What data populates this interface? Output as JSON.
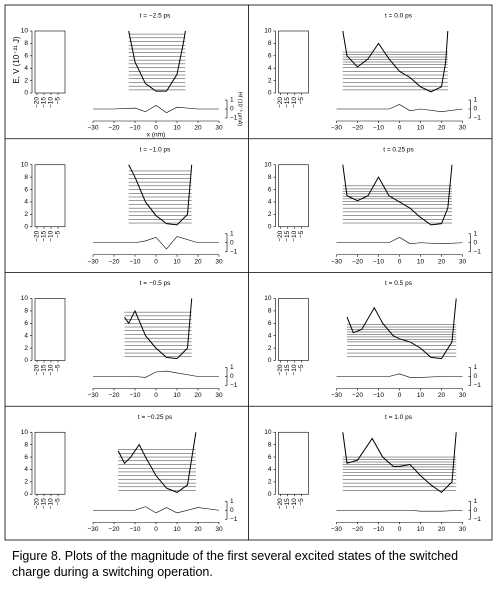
{
  "chart_data": [
    {
      "type": "line",
      "title": "t = −2.5 ps",
      "ylabel": "E, V (10⁻²¹ J)",
      "xlabel": "x (nm)",
      "y2label": "Hf (10⁻³ μmA)",
      "x": [
        -13,
        -10,
        -5,
        0,
        5,
        10,
        13,
        14
      ],
      "values": [
        10,
        5,
        1.5,
        0.3,
        0.3,
        3,
        8,
        10
      ],
      "levels": [
        0.5,
        1.1,
        1.7,
        2.3,
        2.9,
        3.5,
        4.1,
        4.7,
        5.3,
        5.9,
        6.5,
        7.1,
        7.7,
        8.3,
        8.9,
        9.5
      ],
      "current": {
        "x": [
          -30,
          -20,
          -10,
          -5,
          0,
          5,
          10,
          20,
          30
        ],
        "values": [
          0,
          0,
          0.1,
          -0.3,
          0.4,
          -0.4,
          0.2,
          0,
          0
        ]
      },
      "xlim": [
        -30,
        30
      ],
      "xticks": [
        {
          "value": -30,
          "label": "−30"
        },
        {
          "value": -20,
          "label": "−20"
        },
        {
          "value": -10,
          "label": "−10"
        },
        0,
        10,
        20,
        30
      ],
      "ylim": [
        0,
        10
      ],
      "yticks": [
        0,
        2,
        4,
        6,
        8,
        10
      ],
      "y2lim": [
        -1,
        1
      ],
      "y2ticks": [
        1,
        0,
        {
          "value": -1,
          "label": "−1"
        }
      ],
      "inset_ticks": [
        {
          "value": -5,
          "label": "−5"
        },
        {
          "value": -10,
          "label": "−10"
        },
        {
          "value": -15,
          "label": "−15"
        },
        {
          "value": -20,
          "label": "−20"
        }
      ]
    },
    {
      "type": "line",
      "title": "t = 0.0 ps",
      "x": [
        -27,
        -25,
        -20,
        -15,
        -10,
        -5,
        0,
        5,
        10,
        15,
        20,
        22,
        23
      ],
      "values": [
        10,
        6,
        4.2,
        5.5,
        8,
        5.5,
        3.5,
        2.5,
        1,
        0.2,
        1,
        5,
        10
      ],
      "levels": [
        0.5,
        1.1,
        1.7,
        2.3,
        2.9,
        3.5,
        4.1,
        4.6,
        5,
        5.4,
        5.8,
        6.2,
        6.6
      ],
      "current": {
        "x": [
          -30,
          -20,
          -10,
          -5,
          0,
          5,
          10,
          20,
          30
        ],
        "values": [
          0,
          0,
          0,
          0,
          0.5,
          -0.2,
          0,
          -0.3,
          0
        ]
      },
      "xlim": [
        -30,
        30
      ],
      "xticks": [
        {
          "value": -30,
          "label": "−30"
        },
        {
          "value": -20,
          "label": "−20"
        },
        {
          "value": -10,
          "label": "−10"
        },
        0,
        10,
        20,
        30
      ],
      "ylim": [
        0,
        10
      ],
      "yticks": [
        0,
        2,
        4,
        6,
        8,
        10
      ],
      "y2lim": [
        -1,
        1
      ],
      "y2ticks": [
        1,
        0,
        {
          "value": -1,
          "label": "−1"
        }
      ],
      "inset_ticks": [
        {
          "value": -5,
          "label": "−5"
        },
        {
          "value": -10,
          "label": "−10"
        },
        {
          "value": -15,
          "label": "−15"
        },
        {
          "value": -20,
          "label": "−20"
        }
      ]
    },
    {
      "type": "line",
      "title": "t = −1.0 ps",
      "x": [
        -13,
        -10,
        -5,
        0,
        5,
        10,
        15,
        17
      ],
      "values": [
        10,
        8,
        4,
        1.8,
        0.5,
        0.3,
        2,
        10
      ],
      "levels": [
        0.6,
        1.2,
        1.8,
        2.4,
        3,
        3.6,
        4.2,
        4.8,
        5.4,
        6,
        6.6,
        7.2,
        7.8,
        8.4,
        9
      ],
      "current": {
        "x": [
          -30,
          -20,
          -10,
          -5,
          0,
          5,
          10,
          20,
          30
        ],
        "values": [
          0,
          0,
          0,
          0.2,
          0.6,
          -0.7,
          0.7,
          0,
          0
        ]
      },
      "xlim": [
        -30,
        30
      ],
      "xticks": [
        {
          "value": -30,
          "label": "−30"
        },
        {
          "value": -20,
          "label": "−20"
        },
        {
          "value": -10,
          "label": "−10"
        },
        0,
        10,
        20,
        30
      ],
      "ylim": [
        0,
        10
      ],
      "yticks": [
        0,
        2,
        4,
        6,
        8,
        10
      ],
      "y2lim": [
        -1,
        1
      ],
      "y2ticks": [
        1,
        0,
        {
          "value": -1,
          "label": "−1"
        }
      ],
      "inset_ticks": [
        {
          "value": -5,
          "label": "−5"
        },
        {
          "value": -10,
          "label": "−10"
        },
        {
          "value": -15,
          "label": "−15"
        },
        {
          "value": -20,
          "label": "−20"
        }
      ]
    },
    {
      "type": "line",
      "title": "t = 0.25 ps",
      "x": [
        -27,
        -25,
        -20,
        -15,
        -10,
        -5,
        0,
        5,
        10,
        15,
        20,
        23,
        25
      ],
      "values": [
        10,
        5,
        4.2,
        5,
        8,
        5,
        4,
        3,
        1.5,
        0.3,
        0.5,
        3,
        10
      ],
      "levels": [
        0.6,
        1.2,
        1.8,
        2.4,
        3,
        3.6,
        4.1,
        4.5,
        4.9,
        5.3,
        5.7,
        6.1,
        6.6
      ],
      "current": {
        "x": [
          -30,
          -20,
          -10,
          -5,
          0,
          5,
          10,
          20,
          30
        ],
        "values": [
          0,
          0,
          0,
          0,
          0.6,
          -0.1,
          0,
          -0.1,
          0
        ]
      },
      "xlim": [
        -30,
        30
      ],
      "xticks": [
        {
          "value": -30,
          "label": "−30"
        },
        {
          "value": -20,
          "label": "−20"
        },
        {
          "value": -10,
          "label": "−10"
        },
        0,
        10,
        20,
        30
      ],
      "ylim": [
        0,
        10
      ],
      "yticks": [
        0,
        2,
        4,
        6,
        8,
        10
      ],
      "y2lim": [
        -1,
        1
      ],
      "y2ticks": [
        1,
        0,
        {
          "value": -1,
          "label": "−1"
        }
      ],
      "inset_ticks": [
        {
          "value": -5,
          "label": "−5"
        },
        {
          "value": -10,
          "label": "−10"
        },
        {
          "value": -15,
          "label": "−15"
        },
        {
          "value": -20,
          "label": "−20"
        }
      ]
    },
    {
      "type": "line",
      "title": "t = −0.5 ps",
      "x": [
        -15,
        -13,
        -10,
        -5,
        0,
        5,
        10,
        15,
        17
      ],
      "values": [
        7,
        6,
        8,
        4,
        2,
        0.5,
        0.3,
        2,
        10
      ],
      "levels": [
        0.6,
        1.2,
        1.8,
        2.4,
        3,
        3.6,
        4.2,
        4.8,
        5.4,
        6,
        6.6,
        7.2,
        7.8
      ],
      "current": {
        "x": [
          -30,
          -20,
          -10,
          -5,
          0,
          5,
          10,
          20,
          30
        ],
        "values": [
          0,
          0,
          0,
          -0.1,
          0.5,
          0.6,
          0.4,
          0,
          0
        ]
      },
      "xlim": [
        -30,
        30
      ],
      "xticks": [
        {
          "value": -30,
          "label": "−30"
        },
        {
          "value": -20,
          "label": "−20"
        },
        {
          "value": -10,
          "label": "−10"
        },
        0,
        10,
        20,
        30
      ],
      "ylim": [
        0,
        10
      ],
      "yticks": [
        0,
        2,
        4,
        6,
        8,
        10
      ],
      "y2lim": [
        -1,
        1
      ],
      "y2ticks": [
        1,
        0,
        {
          "value": -1,
          "label": "−1"
        }
      ],
      "inset_ticks": [
        {
          "value": -5,
          "label": "−5"
        },
        {
          "value": -10,
          "label": "−10"
        },
        {
          "value": -15,
          "label": "−15"
        },
        {
          "value": -20,
          "label": "−20"
        }
      ]
    },
    {
      "type": "line",
      "title": "t = 0.5 ps",
      "x": [
        -25,
        -22,
        -18,
        -12,
        -8,
        -3,
        0,
        5,
        10,
        15,
        20,
        25,
        27
      ],
      "values": [
        7,
        4.5,
        5,
        8.5,
        6,
        4,
        3.5,
        3,
        2,
        0.5,
        0.3,
        3,
        10
      ],
      "levels": [
        0.6,
        1.2,
        1.8,
        2.4,
        3,
        3.4,
        3.8,
        4.2,
        4.6,
        5,
        5.4,
        5.8
      ],
      "current": {
        "x": [
          -30,
          -20,
          -10,
          -5,
          0,
          5,
          10,
          20,
          30
        ],
        "values": [
          0,
          0,
          0,
          0,
          0.3,
          -0.1,
          -0.1,
          0,
          0
        ]
      },
      "xlim": [
        -30,
        30
      ],
      "xticks": [
        {
          "value": -30,
          "label": "−30"
        },
        {
          "value": -20,
          "label": "−20"
        },
        {
          "value": -10,
          "label": "−10"
        },
        0,
        10,
        20,
        30
      ],
      "ylim": [
        0,
        10
      ],
      "yticks": [
        0,
        2,
        4,
        6,
        8,
        10
      ],
      "y2lim": [
        -1,
        1
      ],
      "y2ticks": [
        1,
        0,
        {
          "value": -1,
          "label": "−1"
        }
      ],
      "inset_ticks": [
        {
          "value": -5,
          "label": "−5"
        },
        {
          "value": -10,
          "label": "−10"
        },
        {
          "value": -15,
          "label": "−15"
        },
        {
          "value": -20,
          "label": "−20"
        }
      ]
    },
    {
      "type": "line",
      "title": "t = −0.25 ps",
      "x": [
        -18,
        -15,
        -12,
        -8,
        -5,
        0,
        5,
        10,
        15,
        19
      ],
      "values": [
        7,
        5,
        6,
        8,
        6,
        3,
        1,
        0.3,
        1.5,
        10
      ],
      "levels": [
        0.6,
        1.2,
        1.8,
        2.4,
        3,
        3.6,
        4.2,
        4.8,
        5.4,
        6,
        6.6,
        7.2
      ],
      "current": {
        "x": [
          -30,
          -20,
          -10,
          -5,
          0,
          5,
          10,
          20,
          30
        ],
        "values": [
          0,
          0,
          0,
          0.4,
          -0.3,
          0.3,
          -0.3,
          0.3,
          0
        ]
      },
      "xlim": [
        -30,
        30
      ],
      "xticks": [
        {
          "value": -30,
          "label": "−30"
        },
        {
          "value": -20,
          "label": "−20"
        },
        {
          "value": -10,
          "label": "−10"
        },
        0,
        10,
        20,
        30
      ],
      "ylim": [
        0,
        10
      ],
      "yticks": [
        0,
        2,
        4,
        6,
        8,
        10
      ],
      "y2lim": [
        -1,
        1
      ],
      "y2ticks": [
        1,
        0,
        {
          "value": -1,
          "label": "−1"
        }
      ],
      "inset_ticks": [
        {
          "value": -5,
          "label": "−5"
        },
        {
          "value": -10,
          "label": "−10"
        },
        {
          "value": -15,
          "label": "−15"
        },
        {
          "value": -20,
          "label": "−20"
        }
      ]
    },
    {
      "type": "line",
      "title": "t = 1.0 ps",
      "x": [
        -27,
        -25,
        -20,
        -13,
        -8,
        -3,
        0,
        5,
        10,
        15,
        20,
        25,
        27
      ],
      "values": [
        10,
        5,
        5.5,
        9,
        6,
        4.5,
        4.5,
        4.8,
        3,
        1.5,
        0.3,
        2,
        10
      ],
      "levels": [
        0.6,
        1.2,
        1.8,
        2.4,
        3,
        3.5,
        4,
        4.4,
        4.8,
        5.2,
        5.6,
        6
      ],
      "current": {
        "x": [
          -30,
          -20,
          -10,
          -5,
          0,
          5,
          10,
          20,
          30
        ],
        "values": [
          0,
          0,
          0,
          0,
          0,
          0,
          -0.1,
          -0.1,
          0
        ]
      },
      "xlim": [
        -30,
        30
      ],
      "xticks": [
        {
          "value": -30,
          "label": "−30"
        },
        {
          "value": -20,
          "label": "−20"
        },
        {
          "value": -10,
          "label": "−10"
        },
        0,
        10,
        20,
        30
      ],
      "ylim": [
        0,
        10
      ],
      "yticks": [
        0,
        2,
        4,
        6,
        8,
        10
      ],
      "y2lim": [
        -1,
        1
      ],
      "y2ticks": [
        1,
        0,
        {
          "value": -1,
          "label": "−1"
        }
      ],
      "inset_ticks": [
        {
          "value": -5,
          "label": "−5"
        },
        {
          "value": -10,
          "label": "−10"
        },
        {
          "value": -15,
          "label": "−15"
        },
        {
          "value": -20,
          "label": "−20"
        }
      ]
    }
  ],
  "caption": "Figure 8.  Plots of the magnitude of the first several excited states of the switched charge during a switching operation."
}
